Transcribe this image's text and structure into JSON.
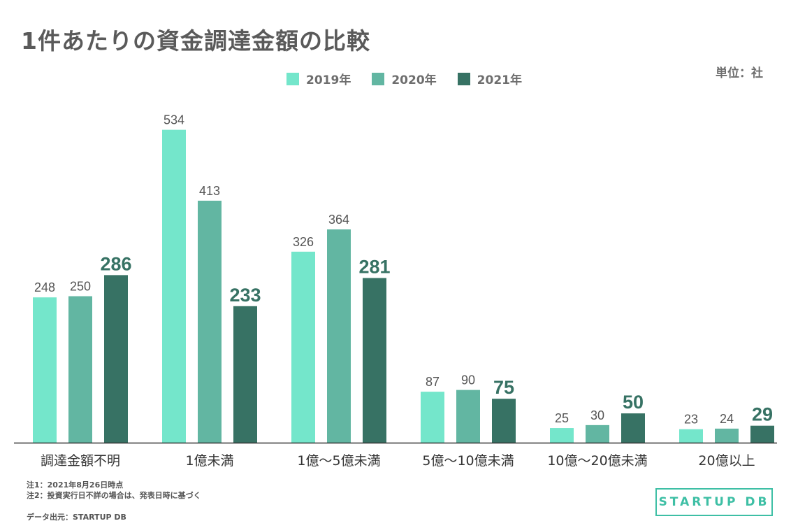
{
  "title": "1件あたりの資金調達金額の比較",
  "unit_label": "単位：社",
  "colors": {
    "2019": "#74e6cb",
    "2020": "#62b6a2",
    "2021": "#377264",
    "axis": "#333333",
    "label": "#555555"
  },
  "chart_data": {
    "type": "bar",
    "title": "1件あたりの資金調達金額の比較",
    "xlabel": "",
    "ylabel": "",
    "ylim": [
      0,
      560
    ],
    "legend_position": "top-center",
    "categories": [
      "調達金額不明",
      "1億未満",
      "1億〜5億未満",
      "5億〜10億未満",
      "10億〜20億未満",
      "20億以上"
    ],
    "series": [
      {
        "name": "2019年",
        "values": [
          248,
          534,
          326,
          87,
          25,
          23
        ]
      },
      {
        "name": "2020年",
        "values": [
          250,
          413,
          364,
          90,
          30,
          24
        ]
      },
      {
        "name": "2021年",
        "values": [
          286,
          233,
          281,
          75,
          50,
          29
        ]
      }
    ]
  },
  "notes": [
    "注1：2021年8月26日時点",
    "注2：投資実行日不詳の場合は、発表日時に基づく"
  ],
  "source": "データ出元：STARTUP DB",
  "logo_text": "STARTUP DB"
}
